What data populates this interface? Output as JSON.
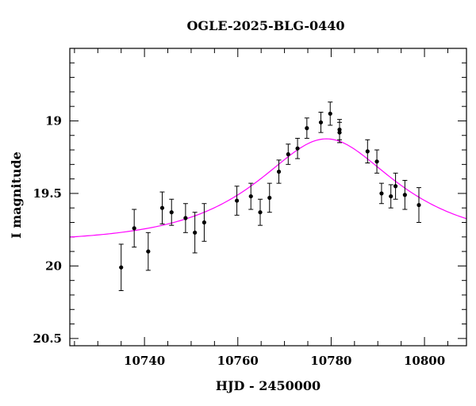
{
  "chart_data": {
    "type": "scatter",
    "title": "OGLE-2025-BLG-0440",
    "xlabel": "HJD - 2450000",
    "ylabel": "I magnitude",
    "xlim": [
      10724,
      10809
    ],
    "ylim": [
      20.55,
      18.5
    ],
    "y_inverted": true,
    "grid": false,
    "legend": "none",
    "xticks": [
      10740,
      10760,
      10780,
      10800
    ],
    "xtick_labels": [
      "10740",
      "10760",
      "10780",
      "10800"
    ],
    "yticks": [
      19,
      19.5,
      20,
      20.5
    ],
    "ytick_labels": [
      "19",
      "19.5",
      "20",
      "20.5"
    ],
    "colors": {
      "points": "#000000",
      "model": "#ff00ff"
    },
    "series": [
      {
        "kind": "points_with_errorbars",
        "x": [
          10735.0,
          10737.8,
          10740.8,
          10743.8,
          10745.8,
          10748.8,
          10750.8,
          10752.8,
          10759.8,
          10762.8,
          10764.8,
          10766.8,
          10768.8,
          10770.8,
          10772.8,
          10774.8,
          10777.8,
          10779.8,
          10781.8,
          10781.8,
          10787.8,
          10789.8,
          10790.8,
          10792.8,
          10793.8,
          10795.8,
          10798.8
        ],
        "y": [
          20.01,
          19.74,
          19.9,
          19.6,
          19.63,
          19.67,
          19.77,
          19.7,
          19.55,
          19.52,
          19.63,
          19.53,
          19.35,
          19.23,
          19.19,
          19.05,
          19.01,
          18.95,
          19.06,
          19.08,
          19.21,
          19.28,
          19.5,
          19.52,
          19.45,
          19.51,
          19.58
        ],
        "err": [
          0.16,
          0.13,
          0.13,
          0.11,
          0.09,
          0.1,
          0.14,
          0.13,
          0.1,
          0.09,
          0.09,
          0.1,
          0.08,
          0.07,
          0.07,
          0.07,
          0.07,
          0.08,
          0.07,
          0.07,
          0.08,
          0.08,
          0.07,
          0.08,
          0.09,
          0.1,
          0.12
        ]
      },
      {
        "kind": "model_curve",
        "model": "point-lens",
        "t0": 10779.0,
        "tE": 24.0,
        "u0": 0.58,
        "baseline": 19.84
      }
    ]
  }
}
